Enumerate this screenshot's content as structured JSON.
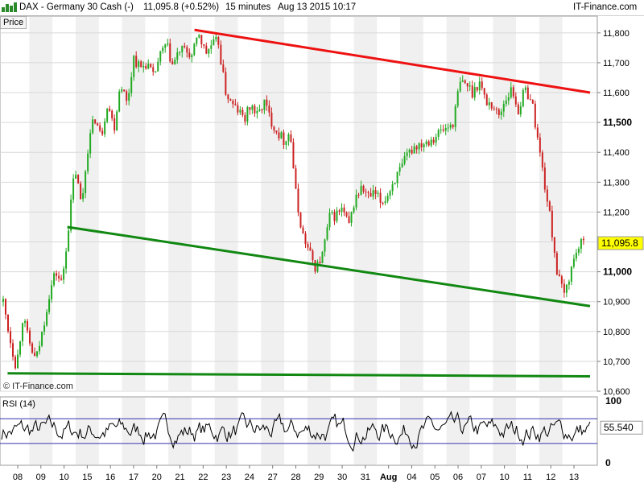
{
  "header": {
    "title": "DAX - Germany 30 Cash (-)",
    "last_change": "11,095.8 (+0.52%)",
    "interval": "15 minutes",
    "datetime": "Aug 13 2015 10:17",
    "source": "IT-Finance.com"
  },
  "colors": {
    "up_candle": "#22aa22",
    "down_candle": "#cc2222",
    "resistance_line": "#ee1111",
    "support_line": "#118811",
    "rsi_line": "#000000",
    "rsi_band": "#3333aa",
    "last_price_box": "#ffff00"
  },
  "chart_data": [
    {
      "type": "line",
      "panel": "Price",
      "panel_label": "Price",
      "watermark": "© IT-Finance.com",
      "last_value_label": "11,095.8",
      "y_range": [
        10600,
        11840
      ],
      "y_ticks": [
        {
          "value": 10600,
          "label": "10,600",
          "bold": false
        },
        {
          "value": 10700,
          "label": "10,700",
          "bold": false
        },
        {
          "value": 10800,
          "label": "10,800",
          "bold": false
        },
        {
          "value": 10900,
          "label": "10,900",
          "bold": false
        },
        {
          "value": 11000,
          "label": "11,000",
          "bold": true
        },
        {
          "value": 11100,
          "label": "11,100",
          "bold": false
        },
        {
          "value": 11200,
          "label": "11,200",
          "bold": false
        },
        {
          "value": 11300,
          "label": "11,300",
          "bold": false
        },
        {
          "value": 11400,
          "label": "11,400",
          "bold": false
        },
        {
          "value": 11500,
          "label": "11,500",
          "bold": true
        },
        {
          "value": 11600,
          "label": "11,600",
          "bold": false
        },
        {
          "value": 11700,
          "label": "11,700",
          "bold": false
        },
        {
          "value": 11800,
          "label": "11,800",
          "bold": false
        }
      ],
      "x_labels": [
        "08",
        "09",
        "10",
        "15",
        "16",
        "17",
        "20",
        "21",
        "22",
        "23",
        "24",
        "27",
        "28",
        "29",
        "30",
        "31",
        "Aug",
        "04",
        "05",
        "06",
        "07",
        "10",
        "11",
        "12",
        "13"
      ],
      "price_path": [
        [
          0,
          10900
        ],
        [
          0.3,
          10780
        ],
        [
          0.6,
          10680
        ],
        [
          0.9,
          10850
        ],
        [
          1.2,
          10760
        ],
        [
          1.5,
          10700
        ],
        [
          1.8,
          10800
        ],
        [
          2.1,
          10920
        ],
        [
          2.4,
          11000
        ],
        [
          2.7,
          10960
        ],
        [
          3.0,
          11150
        ],
        [
          3.3,
          11350
        ],
        [
          3.6,
          11220
        ],
        [
          3.9,
          11420
        ],
        [
          4.2,
          11520
        ],
        [
          4.5,
          11450
        ],
        [
          4.8,
          11570
        ],
        [
          5.1,
          11480
        ],
        [
          5.4,
          11640
        ],
        [
          5.7,
          11560
        ],
        [
          6.0,
          11720
        ],
        [
          6.3,
          11680
        ],
        [
          6.6,
          11700
        ],
        [
          6.9,
          11650
        ],
        [
          7.2,
          11720
        ],
        [
          7.5,
          11760
        ],
        [
          7.8,
          11690
        ],
        [
          8.1,
          11740
        ],
        [
          8.4,
          11740
        ],
        [
          8.7,
          11720
        ],
        [
          9.0,
          11800
        ],
        [
          9.3,
          11730
        ],
        [
          9.6,
          11760
        ],
        [
          9.9,
          11770
        ],
        [
          10.2,
          11610
        ],
        [
          10.5,
          11560
        ],
        [
          10.8,
          11540
        ],
        [
          11.1,
          11510
        ],
        [
          11.4,
          11560
        ],
        [
          11.7,
          11520
        ],
        [
          12.0,
          11570
        ],
        [
          12.3,
          11510
        ],
        [
          12.6,
          11470
        ],
        [
          12.9,
          11440
        ],
        [
          13.2,
          11470
        ],
        [
          13.5,
          11230
        ],
        [
          13.8,
          11120
        ],
        [
          14.1,
          11060
        ],
        [
          14.4,
          11010
        ],
        [
          14.7,
          11060
        ],
        [
          15.0,
          11180
        ],
        [
          15.3,
          11190
        ],
        [
          15.6,
          11210
        ],
        [
          15.9,
          11150
        ],
        [
          16.2,
          11250
        ],
        [
          16.5,
          11280
        ],
        [
          16.8,
          11250
        ],
        [
          17.1,
          11260
        ],
        [
          17.4,
          11230
        ],
        [
          17.7,
          11260
        ],
        [
          18.0,
          11310
        ],
        [
          18.3,
          11340
        ],
        [
          18.6,
          11390
        ],
        [
          18.9,
          11420
        ],
        [
          19.2,
          11430
        ],
        [
          19.5,
          11440
        ],
        [
          19.8,
          11450
        ],
        [
          20.1,
          11470
        ],
        [
          20.4,
          11480
        ],
        [
          20.7,
          11500
        ],
        [
          21.0,
          11630
        ],
        [
          21.3,
          11630
        ],
        [
          21.6,
          11600
        ],
        [
          21.9,
          11640
        ],
        [
          22.2,
          11570
        ],
        [
          22.5,
          11560
        ],
        [
          22.8,
          11520
        ],
        [
          23.1,
          11580
        ],
        [
          23.4,
          11610
        ],
        [
          23.7,
          11540
        ],
        [
          24.0,
          11610
        ],
        [
          24.3,
          11580
        ],
        [
          24.6,
          11440
        ],
        [
          24.9,
          11300
        ],
        [
          25.2,
          11160
        ],
        [
          25.5,
          10990
        ],
        [
          25.8,
          10920
        ],
        [
          26.1,
          11000
        ],
        [
          26.4,
          11080
        ],
        [
          26.7,
          11095.8
        ]
      ],
      "x_range": [
        0,
        27
      ],
      "trendlines": [
        {
          "role": "resistance",
          "from": [
            8.8,
            11810
          ],
          "to": [
            27,
            11600
          ]
        },
        {
          "role": "support_upper",
          "from": [
            2.95,
            11150
          ],
          "to": [
            27,
            10885
          ]
        },
        {
          "role": "support_lower",
          "from": [
            0.2,
            10660
          ],
          "to": [
            27,
            10650
          ]
        }
      ]
    },
    {
      "type": "line",
      "panel": "RSI",
      "panel_label": "RSI (14)",
      "last_value_label": "55.540",
      "y_range": [
        0,
        100
      ],
      "y_ticks": [
        {
          "value": 100,
          "label": "100"
        },
        {
          "value": 0,
          "label": "0"
        }
      ],
      "bands": [
        70,
        30
      ],
      "seed": 7
    }
  ]
}
